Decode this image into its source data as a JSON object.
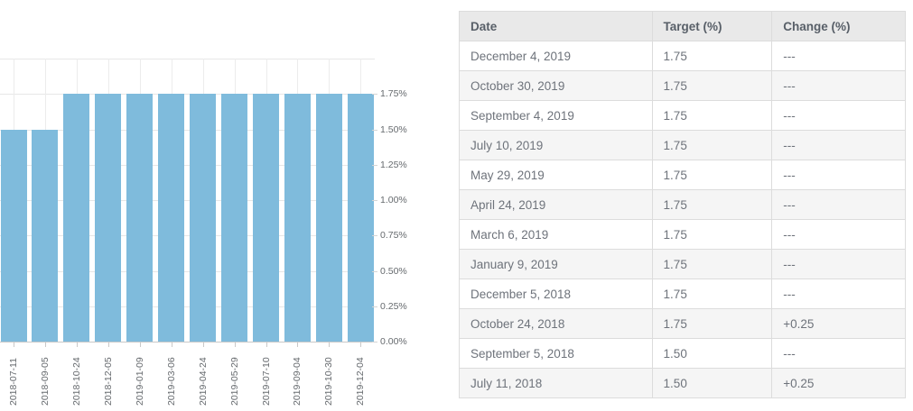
{
  "chart_data": {
    "type": "bar",
    "title": "",
    "xlabel": "",
    "ylabel": "",
    "categories": [
      "2018-07-11",
      "2018-09-05",
      "2018-10-24",
      "2018-12-05",
      "2019-01-09",
      "2019-03-06",
      "2019-04-24",
      "2019-05-29",
      "2019-07-10",
      "2019-09-04",
      "2019-10-30",
      "2019-12-04"
    ],
    "values": [
      1.5,
      1.5,
      1.75,
      1.75,
      1.75,
      1.75,
      1.75,
      1.75,
      1.75,
      1.75,
      1.75,
      1.75
    ],
    "ylim": [
      0,
      2.0
    ],
    "ytick_step": 0.25,
    "ytick_labels": [
      "0.00%",
      "0.25%",
      "0.50%",
      "0.75%",
      "1.00%",
      "1.25%",
      "1.50%",
      "1.75%"
    ],
    "yaxis_position": "right",
    "grid": true,
    "bar_color": "#7fbbdc",
    "axis_text_color": "#666a6e"
  },
  "table": {
    "headers": [
      "Date",
      "Target (%)",
      "Change (%)"
    ],
    "rows": [
      {
        "date": "December 4, 2019",
        "target": "1.75",
        "change": "---"
      },
      {
        "date": "October 30, 2019",
        "target": "1.75",
        "change": "---"
      },
      {
        "date": "September 4, 2019",
        "target": "1.75",
        "change": "---"
      },
      {
        "date": "July 10, 2019",
        "target": "1.75",
        "change": "---"
      },
      {
        "date": "May 29, 2019",
        "target": "1.75",
        "change": "---"
      },
      {
        "date": "April 24, 2019",
        "target": "1.75",
        "change": "---"
      },
      {
        "date": "March 6, 2019",
        "target": "1.75",
        "change": "---"
      },
      {
        "date": "January 9, 2019",
        "target": "1.75",
        "change": "---"
      },
      {
        "date": "December 5, 2018",
        "target": "1.75",
        "change": "---"
      },
      {
        "date": "October 24, 2018",
        "target": "1.75",
        "change": "+0.25"
      },
      {
        "date": "September 5, 2018",
        "target": "1.50",
        "change": "---"
      },
      {
        "date": "July 11, 2018",
        "target": "1.50",
        "change": "+0.25"
      }
    ]
  }
}
